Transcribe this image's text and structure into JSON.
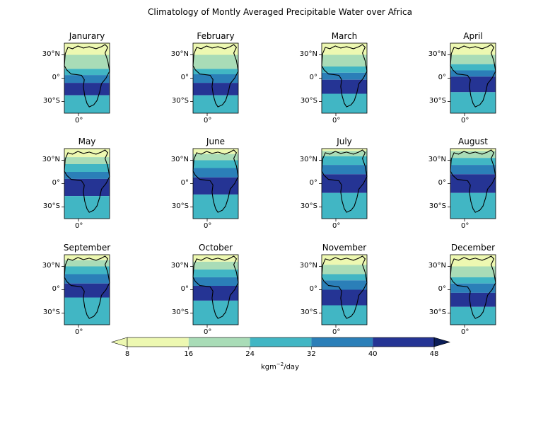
{
  "title": "Climatology of Montly Averaged Precipitable Water over Africa",
  "chart_data": {
    "type": "heatmap",
    "subtype": "filled-contour map panels (3 x 4 grid)",
    "panels": [
      "Janurary",
      "February",
      "March",
      "April",
      "May",
      "June",
      "July",
      "August",
      "September",
      "October",
      "November",
      "December"
    ],
    "lat_ticks": [
      "30°N",
      "0°",
      "30°S"
    ],
    "lon_ticks": [
      "0°"
    ],
    "lat_range": [
      -45,
      45
    ],
    "levels": [
      8,
      16,
      24,
      32,
      40,
      48
    ],
    "colorbar_tick_labels": [
      "8",
      "16",
      "24",
      "32",
      "40",
      "48"
    ],
    "colorbar_label": "kgm",
    "colorbar_label_exponent": "−2",
    "colorbar_label_suffix": "/day",
    "colorbar_extend": "both",
    "colors": [
      "#edf8b1",
      "#a9dcb7",
      "#41b6c4",
      "#2b7fb8",
      "#253494",
      "#0c1d58"
    ],
    "band_tops_deg_lat": [
      [
        45,
        30,
        12,
        4,
        -6,
        -22,
        -45
      ],
      [
        45,
        30,
        12,
        5,
        -6,
        -22,
        -45
      ],
      [
        45,
        30,
        15,
        7,
        -2,
        -20,
        -45
      ],
      [
        45,
        30,
        18,
        10,
        2,
        -18,
        -45
      ],
      [
        45,
        34,
        25,
        15,
        6,
        -16,
        -45
      ],
      [
        45,
        38,
        30,
        20,
        8,
        -14,
        -45
      ],
      [
        45,
        42,
        35,
        24,
        12,
        -12,
        -45
      ],
      [
        45,
        42,
        33,
        24,
        12,
        -12,
        -45
      ],
      [
        45,
        38,
        30,
        20,
        8,
        -10,
        -45
      ],
      [
        45,
        36,
        26,
        16,
        5,
        -14,
        -45
      ],
      [
        45,
        32,
        20,
        12,
        0,
        -20,
        -45
      ],
      [
        45,
        30,
        16,
        8,
        -4,
        -22,
        -45
      ]
    ]
  }
}
